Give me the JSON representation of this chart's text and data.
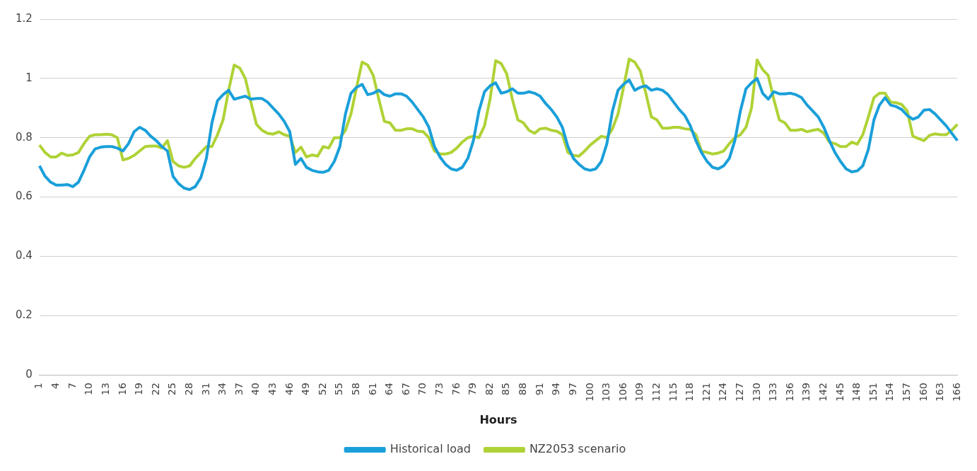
{
  "chart_data": {
    "type": "line",
    "xlabel": "Hours",
    "categories": [
      "1",
      null,
      null,
      "4",
      null,
      null,
      "7",
      null,
      null,
      "10",
      null,
      null,
      "13",
      null,
      null,
      "16",
      null,
      null,
      "19",
      null,
      null,
      "22",
      null,
      null,
      "25",
      null,
      null,
      "28",
      null,
      null,
      "31",
      null,
      null,
      "34",
      null,
      null,
      "37",
      null,
      null,
      "40",
      null,
      null,
      "43",
      null,
      null,
      "46",
      null,
      null,
      "49",
      null,
      null,
      "52",
      null,
      null,
      "55",
      null,
      null,
      "58",
      null,
      null,
      "61",
      null,
      null,
      "64",
      null,
      null,
      "67",
      null,
      null,
      "70",
      null,
      null,
      "73",
      null,
      null,
      "76",
      null,
      null,
      "79",
      null,
      null,
      "82",
      null,
      null,
      "85",
      null,
      null,
      "88",
      null,
      null,
      "91",
      null,
      null,
      "94",
      null,
      null,
      "97",
      null,
      null,
      "100",
      null,
      null,
      "103",
      null,
      null,
      "106",
      null,
      null,
      "109",
      null,
      null,
      "112",
      null,
      null,
      "115",
      null,
      null,
      "118",
      null,
      null,
      "121",
      null,
      null,
      "124",
      null,
      null,
      "127",
      null,
      null,
      "130",
      null,
      null,
      "133",
      null,
      null,
      "136",
      null,
      null,
      "139",
      null,
      null,
      "142",
      null,
      null,
      "145",
      null,
      null,
      "148",
      null,
      null,
      "151",
      null,
      null,
      "154",
      null,
      null,
      "157",
      null,
      null,
      "160",
      null,
      null,
      "163",
      null,
      null,
      "166"
    ],
    "series": [
      {
        "name": "Historical load",
        "color": "#1a9fd9",
        "values": [
          0.705,
          0.67,
          0.65,
          0.64,
          0.64,
          0.642,
          0.635,
          0.65,
          0.69,
          0.735,
          0.762,
          0.768,
          0.77,
          0.77,
          0.765,
          0.755,
          0.78,
          0.82,
          0.835,
          0.825,
          0.805,
          0.79,
          0.77,
          0.755,
          0.67,
          0.645,
          0.63,
          0.625,
          0.635,
          0.665,
          0.73,
          0.85,
          0.925,
          0.945,
          0.96,
          0.93,
          0.935,
          0.94,
          0.93,
          0.932,
          0.932,
          0.92,
          0.9,
          0.88,
          0.855,
          0.82,
          0.71,
          0.73,
          0.7,
          0.69,
          0.685,
          0.683,
          0.69,
          0.72,
          0.77,
          0.88,
          0.95,
          0.97,
          0.98,
          0.945,
          0.95,
          0.96,
          0.945,
          0.94,
          0.948,
          0.948,
          0.94,
          0.92,
          0.895,
          0.87,
          0.835,
          0.77,
          0.735,
          0.71,
          0.695,
          0.69,
          0.7,
          0.73,
          0.79,
          0.89,
          0.955,
          0.975,
          0.985,
          0.95,
          0.955,
          0.965,
          0.95,
          0.95,
          0.955,
          0.95,
          0.94,
          0.915,
          0.895,
          0.87,
          0.835,
          0.77,
          0.73,
          0.71,
          0.695,
          0.69,
          0.695,
          0.72,
          0.78,
          0.89,
          0.96,
          0.98,
          0.995,
          0.96,
          0.97,
          0.975,
          0.96,
          0.965,
          0.96,
          0.945,
          0.92,
          0.895,
          0.875,
          0.84,
          0.79,
          0.75,
          0.72,
          0.7,
          0.695,
          0.705,
          0.73,
          0.79,
          0.89,
          0.965,
          0.985,
          1.0,
          0.95,
          0.93,
          0.955,
          0.948,
          0.948,
          0.95,
          0.945,
          0.935,
          0.91,
          0.89,
          0.87,
          0.835,
          0.79,
          0.75,
          0.72,
          0.695,
          0.685,
          0.688,
          0.705,
          0.76,
          0.86,
          0.91,
          0.935,
          0.91,
          0.905,
          0.895,
          0.875,
          0.862,
          0.87,
          0.893,
          0.895,
          0.88,
          0.86,
          0.84,
          0.815,
          0.79
        ]
      },
      {
        "name": "NZ2053 scenario",
        "color": "#afd236",
        "values": [
          0.775,
          0.75,
          0.735,
          0.735,
          0.748,
          0.74,
          0.742,
          0.75,
          0.78,
          0.805,
          0.81,
          0.81,
          0.812,
          0.81,
          0.8,
          0.725,
          0.73,
          0.74,
          0.755,
          0.77,
          0.772,
          0.772,
          0.765,
          0.79,
          0.72,
          0.705,
          0.7,
          0.705,
          0.73,
          0.75,
          0.77,
          0.77,
          0.81,
          0.86,
          0.96,
          1.045,
          1.035,
          1.0,
          0.92,
          0.845,
          0.825,
          0.815,
          0.812,
          0.82,
          0.81,
          0.805,
          0.75,
          0.768,
          0.735,
          0.742,
          0.738,
          0.77,
          0.765,
          0.8,
          0.8,
          0.825,
          0.88,
          0.97,
          1.055,
          1.045,
          1.01,
          0.93,
          0.855,
          0.85,
          0.825,
          0.825,
          0.83,
          0.83,
          0.822,
          0.82,
          0.8,
          0.755,
          0.745,
          0.745,
          0.75,
          0.765,
          0.785,
          0.8,
          0.805,
          0.8,
          0.84,
          0.93,
          1.06,
          1.05,
          1.015,
          0.93,
          0.86,
          0.85,
          0.825,
          0.815,
          0.83,
          0.832,
          0.825,
          0.822,
          0.81,
          0.75,
          0.74,
          0.738,
          0.755,
          0.775,
          0.79,
          0.805,
          0.8,
          0.83,
          0.88,
          0.97,
          1.065,
          1.055,
          1.025,
          0.95,
          0.87,
          0.86,
          0.832,
          0.832,
          0.835,
          0.835,
          0.83,
          0.828,
          0.81,
          0.755,
          0.75,
          0.745,
          0.748,
          0.755,
          0.78,
          0.8,
          0.81,
          0.835,
          0.9,
          1.062,
          1.03,
          1.01,
          0.93,
          0.86,
          0.85,
          0.825,
          0.825,
          0.828,
          0.82,
          0.825,
          0.828,
          0.815,
          0.785,
          0.78,
          0.77,
          0.77,
          0.785,
          0.778,
          0.81,
          0.87,
          0.935,
          0.95,
          0.95,
          0.92,
          0.918,
          0.912,
          0.89,
          0.805,
          0.797,
          0.79,
          0.808,
          0.813,
          0.81,
          0.81,
          0.825,
          0.845
        ]
      }
    ],
    "ylim": [
      0,
      1.2
    ],
    "yticks": [
      0,
      0.2,
      0.4,
      0.6,
      0.8,
      1,
      1.2
    ],
    "grid": "y",
    "legend": "bottom",
    "marker": "none",
    "line_style": "solid"
  }
}
